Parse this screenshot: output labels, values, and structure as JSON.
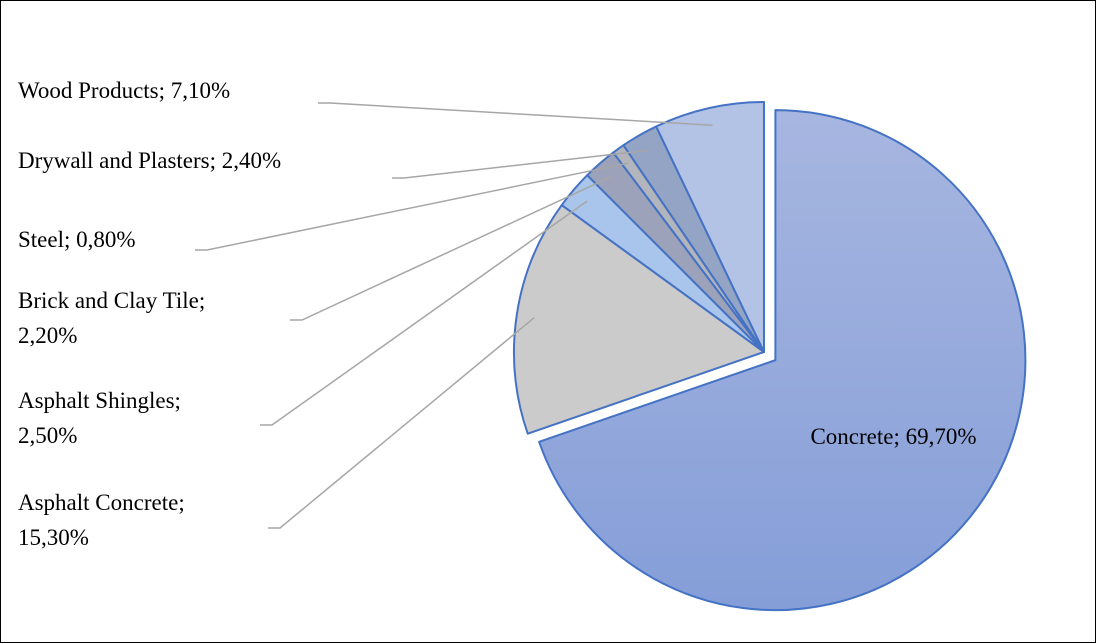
{
  "chart_data": {
    "type": "pie",
    "categories": [
      "Concrete",
      "Asphalt Concrete",
      "Asphalt Shingles",
      "Brick and Clay Tile",
      "Steel",
      "Drywall and Plasters",
      "Wood Products"
    ],
    "values": [
      69.7,
      15.3,
      2.5,
      2.2,
      0.8,
      2.4,
      7.1
    ],
    "value_labels": [
      "69,70%",
      "15,30%",
      "2,50%",
      "2,20%",
      "0,80%",
      "2,40%",
      "7,10%"
    ],
    "label_separator": "; ",
    "colors": [
      "#93a7dc",
      "#cbcbcb",
      "#aac5eb",
      "#9da2bb",
      "#b3b5bd",
      "#93a4c4",
      "#b2c3e6"
    ],
    "explode": "Concrete"
  }
}
